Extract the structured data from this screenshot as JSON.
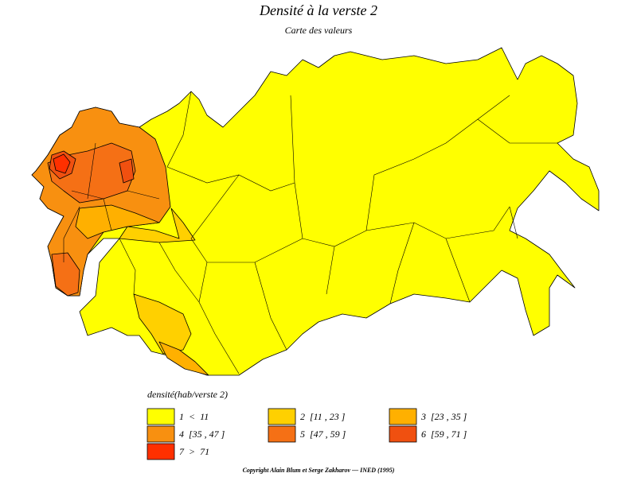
{
  "title": "Densité à la verste 2",
  "subtitle": "Carte des valeurs",
  "legend": {
    "title": "densité(hab/verste 2)",
    "items": [
      {
        "label": "1  <  11",
        "color": "#ffff00"
      },
      {
        "label": "2  [11 , 23 ]",
        "color": "#ffd000"
      },
      {
        "label": "3  [23 , 35 ]",
        "color": "#ffb000"
      },
      {
        "label": "4  [35 , 47 ]",
        "color": "#f89010"
      },
      {
        "label": "5  [47 , 59 ]",
        "color": "#f57015"
      },
      {
        "label": "6  [59 , 71 ]",
        "color": "#f05010"
      },
      {
        "label": "7  >  71",
        "color": "#ff3000"
      }
    ]
  },
  "copyright": "Copyright Alain Blum et Serge Zakharov — INED (1995)"
}
